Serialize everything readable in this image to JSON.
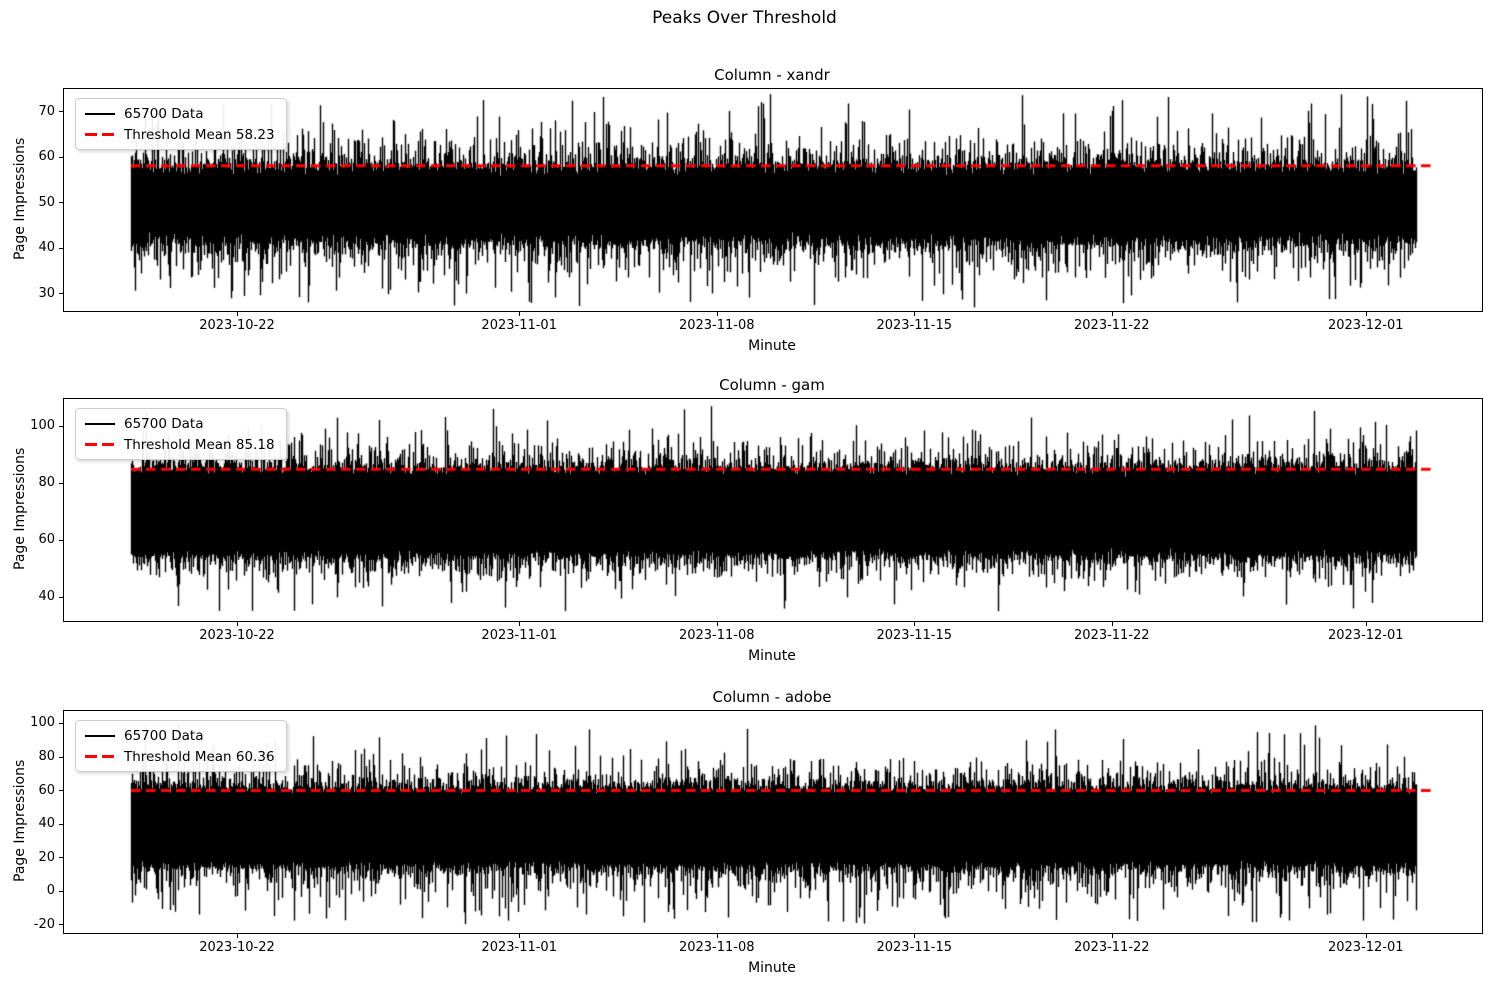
{
  "figure": {
    "title": "Peaks Over Threshold",
    "background": "#ffffff"
  },
  "chart_data": [
    {
      "type": "line",
      "title": "Column - xandr",
      "grid": false,
      "legend_position": "upper-left",
      "series": [
        {
          "name": "65700 Data",
          "color": "#000000",
          "line_style": "solid",
          "points": 65700,
          "stats": {
            "dense_band": [
              42,
              58
            ],
            "observed_min": 28,
            "observed_max": 73
          }
        },
        {
          "name": "Threshold Mean 58.23",
          "color": "#ff0000",
          "line_style": "dashed",
          "value": 58.23
        }
      ],
      "x_axis": {
        "label": "Minute",
        "range": [
          "2023-10-15 20:00",
          "2023-12-05 02:00"
        ],
        "data_range": [
          "2023-10-18 05:00",
          "2023-12-02 18:00"
        ],
        "tick_labels": [
          "2023-10-22",
          "2023-11-01",
          "2023-11-08",
          "2023-11-15",
          "2023-11-22",
          "2023-12-01"
        ]
      },
      "y_axis": {
        "label": "Page Impressions",
        "range": [
          26.3,
          75.1
        ],
        "ticks": [
          30,
          40,
          50,
          60,
          70
        ]
      },
      "render": {
        "seed": 11,
        "band": [
          42.2,
          57.3
        ],
        "jitter": 1.1,
        "tail_mean": [
          3.0,
          3.1
        ],
        "tail_max": [
          14,
          15.5
        ]
      }
    },
    {
      "type": "line",
      "title": "Column - gam",
      "grid": false,
      "legend_position": "upper-left",
      "series": [
        {
          "name": "65700 Data",
          "color": "#000000",
          "line_style": "solid",
          "points": 65700,
          "stats": {
            "dense_band": [
              55,
              85
            ],
            "observed_min": 36,
            "observed_max": 106
          }
        },
        {
          "name": "Threshold Mean 85.18",
          "color": "#ff0000",
          "line_style": "dashed",
          "value": 85.18
        }
      ],
      "x_axis": {
        "label": "Minute",
        "range": [
          "2023-10-15 20:00",
          "2023-12-05 02:00"
        ],
        "data_range": [
          "2023-10-18 05:00",
          "2023-12-02 18:00"
        ],
        "tick_labels": [
          "2023-10-22",
          "2023-11-01",
          "2023-11-08",
          "2023-11-15",
          "2023-11-22",
          "2023-12-01"
        ]
      },
      "y_axis": {
        "label": "Page Impressions",
        "range": [
          31.9,
          109.8
        ],
        "ticks": [
          40,
          60,
          80,
          100
        ]
      },
      "render": {
        "seed": 22,
        "band": [
          55.5,
          84.6
        ],
        "jitter": 1.3,
        "tail_mean": [
          3.6,
          3.8
        ],
        "tail_max": [
          19,
          21
        ]
      }
    },
    {
      "type": "line",
      "title": "Column - adobe",
      "grid": false,
      "legend_position": "upper-left",
      "series": [
        {
          "name": "65700 Data",
          "color": "#000000",
          "line_style": "solid",
          "points": 65700,
          "stats": {
            "dense_band": [
              16,
              61
            ],
            "observed_min": -18,
            "observed_max": 100
          }
        },
        {
          "name": "Threshold Mean 60.36",
          "color": "#ff0000",
          "line_style": "dashed",
          "value": 60.36
        }
      ],
      "x_axis": {
        "label": "Minute",
        "range": [
          "2023-10-15 20:00",
          "2023-12-05 02:00"
        ],
        "data_range": [
          "2023-10-18 05:00",
          "2023-12-02 18:00"
        ],
        "tick_labels": [
          "2023-10-22",
          "2023-11-01",
          "2023-11-08",
          "2023-11-15",
          "2023-11-22",
          "2023-12-01"
        ]
      },
      "y_axis": {
        "label": "Page Impressions",
        "range": [
          -24.5,
          107.7
        ],
        "ticks": [
          -20,
          0,
          20,
          40,
          60,
          80,
          100
        ]
      },
      "render": {
        "seed": 33,
        "band": [
          16.5,
          60.5
        ],
        "jitter": 1.8,
        "tail_mean": [
          7.5,
          6.5
        ],
        "tail_max": [
          34,
          38
        ]
      }
    }
  ]
}
